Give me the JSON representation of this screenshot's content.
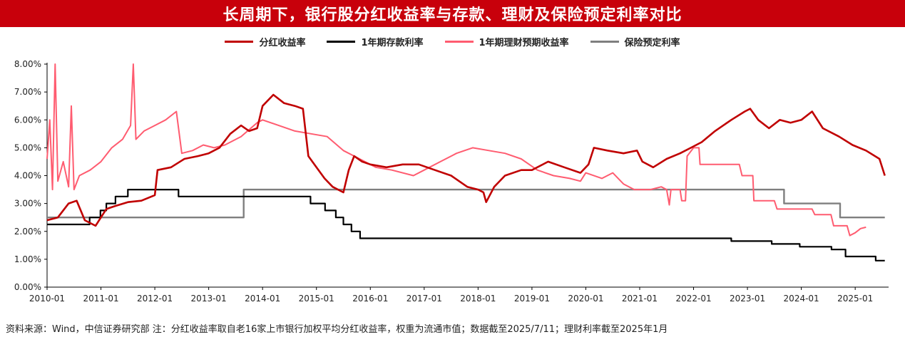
{
  "title": "长周期下，银行股分红收益率与存款、理财及保险预定利率对比",
  "source_note": "资料来源：Wind，中信证券研究部 注：分红收益率取自老16家上市银行加权平均分红收益率，权重为流通市值；数据截至2025/7/11；理财利率截至2025年1月",
  "chart_data": {
    "type": "line",
    "title": "长周期下，银行股分红收益率与存款、理财及保险预定利率对比",
    "xlabel": "",
    "ylabel": "",
    "x_range": [
      2010.0,
      2025.62
    ],
    "ylim": [
      0,
      8
    ],
    "y_ticks": [
      "0.00%",
      "1.00%",
      "2.00%",
      "3.00%",
      "4.00%",
      "5.00%",
      "6.00%",
      "7.00%",
      "8.00%"
    ],
    "x_ticks": [
      "2010-01",
      "2011-01",
      "2012-01",
      "2013-01",
      "2014-01",
      "2015-01",
      "2016-01",
      "2017-01",
      "2018-01",
      "2019-01",
      "2020-01",
      "2021-01",
      "2022-01",
      "2023-01",
      "2024-01",
      "2025-01"
    ],
    "grid": false,
    "legend_position": "top",
    "series": [
      {
        "name": "分红收益率",
        "color": "#c00000",
        "points": [
          [
            2010.0,
            2.4
          ],
          [
            2010.2,
            2.5
          ],
          [
            2010.4,
            3.0
          ],
          [
            2010.55,
            3.1
          ],
          [
            2010.7,
            2.4
          ],
          [
            2010.9,
            2.2
          ],
          [
            2011.0,
            2.5
          ],
          [
            2011.1,
            2.8
          ],
          [
            2011.25,
            2.9
          ],
          [
            2011.5,
            3.05
          ],
          [
            2011.75,
            3.1
          ],
          [
            2012.0,
            3.3
          ],
          [
            2012.05,
            4.2
          ],
          [
            2012.3,
            4.3
          ],
          [
            2012.55,
            4.6
          ],
          [
            2012.8,
            4.7
          ],
          [
            2013.0,
            4.8
          ],
          [
            2013.2,
            5.0
          ],
          [
            2013.4,
            5.5
          ],
          [
            2013.6,
            5.8
          ],
          [
            2013.75,
            5.6
          ],
          [
            2013.9,
            5.7
          ],
          [
            2014.0,
            6.5
          ],
          [
            2014.2,
            6.9
          ],
          [
            2014.4,
            6.6
          ],
          [
            2014.6,
            6.5
          ],
          [
            2014.75,
            6.4
          ],
          [
            2014.85,
            4.7
          ],
          [
            2015.0,
            4.3
          ],
          [
            2015.15,
            3.9
          ],
          [
            2015.3,
            3.6
          ],
          [
            2015.5,
            3.4
          ],
          [
            2015.6,
            4.2
          ],
          [
            2015.7,
            4.7
          ],
          [
            2015.85,
            4.5
          ],
          [
            2016.0,
            4.4
          ],
          [
            2016.3,
            4.3
          ],
          [
            2016.6,
            4.4
          ],
          [
            2016.9,
            4.4
          ],
          [
            2017.2,
            4.2
          ],
          [
            2017.5,
            4.0
          ],
          [
            2017.8,
            3.6
          ],
          [
            2018.0,
            3.5
          ],
          [
            2018.1,
            3.4
          ],
          [
            2018.15,
            3.05
          ],
          [
            2018.3,
            3.6
          ],
          [
            2018.5,
            4.0
          ],
          [
            2018.8,
            4.2
          ],
          [
            2019.0,
            4.2
          ],
          [
            2019.3,
            4.5
          ],
          [
            2019.6,
            4.3
          ],
          [
            2019.9,
            4.1
          ],
          [
            2020.05,
            4.4
          ],
          [
            2020.15,
            5.0
          ],
          [
            2020.4,
            4.9
          ],
          [
            2020.7,
            4.8
          ],
          [
            2020.95,
            4.9
          ],
          [
            2021.05,
            4.5
          ],
          [
            2021.25,
            4.3
          ],
          [
            2021.5,
            4.6
          ],
          [
            2021.75,
            4.8
          ],
          [
            2021.95,
            5.0
          ],
          [
            2022.15,
            5.2
          ],
          [
            2022.4,
            5.6
          ],
          [
            2022.7,
            6.0
          ],
          [
            2022.95,
            6.3
          ],
          [
            2023.05,
            6.4
          ],
          [
            2023.2,
            6.0
          ],
          [
            2023.4,
            5.7
          ],
          [
            2023.6,
            6.0
          ],
          [
            2023.8,
            5.9
          ],
          [
            2024.0,
            6.0
          ],
          [
            2024.2,
            6.3
          ],
          [
            2024.4,
            5.7
          ],
          [
            2024.7,
            5.4
          ],
          [
            2024.95,
            5.1
          ],
          [
            2025.2,
            4.9
          ],
          [
            2025.45,
            4.6
          ],
          [
            2025.55,
            4.0
          ]
        ]
      },
      {
        "name": "1年期存款利率",
        "color": "#000000",
        "points": [
          [
            2010.0,
            2.25
          ],
          [
            2010.79,
            2.25
          ],
          [
            2010.79,
            2.5
          ],
          [
            2010.99,
            2.5
          ],
          [
            2010.99,
            2.75
          ],
          [
            2011.1,
            2.75
          ],
          [
            2011.1,
            3.0
          ],
          [
            2011.27,
            3.0
          ],
          [
            2011.27,
            3.25
          ],
          [
            2011.5,
            3.25
          ],
          [
            2011.5,
            3.5
          ],
          [
            2012.44,
            3.5
          ],
          [
            2012.44,
            3.25
          ],
          [
            2014.89,
            3.25
          ],
          [
            2014.89,
            3.0
          ],
          [
            2015.16,
            3.0
          ],
          [
            2015.16,
            2.75
          ],
          [
            2015.36,
            2.75
          ],
          [
            2015.36,
            2.5
          ],
          [
            2015.5,
            2.5
          ],
          [
            2015.5,
            2.25
          ],
          [
            2015.65,
            2.25
          ],
          [
            2015.65,
            2.0
          ],
          [
            2015.81,
            2.0
          ],
          [
            2015.81,
            1.75
          ],
          [
            2022.7,
            1.75
          ],
          [
            2022.7,
            1.65
          ],
          [
            2023.45,
            1.65
          ],
          [
            2023.45,
            1.55
          ],
          [
            2023.97,
            1.55
          ],
          [
            2023.97,
            1.45
          ],
          [
            2024.56,
            1.45
          ],
          [
            2024.56,
            1.35
          ],
          [
            2024.82,
            1.35
          ],
          [
            2024.82,
            1.1
          ],
          [
            2025.38,
            1.1
          ],
          [
            2025.38,
            0.95
          ],
          [
            2025.55,
            0.95
          ]
        ]
      },
      {
        "name": "1年期理财预期收益率",
        "color": "#ff5c70",
        "points": [
          [
            2010.0,
            4.6
          ],
          [
            2010.05,
            6.0
          ],
          [
            2010.1,
            3.5
          ],
          [
            2010.15,
            8.0
          ],
          [
            2010.2,
            3.8
          ],
          [
            2010.3,
            4.5
          ],
          [
            2010.4,
            3.6
          ],
          [
            2010.45,
            6.5
          ],
          [
            2010.5,
            3.5
          ],
          [
            2010.6,
            4.0
          ],
          [
            2010.8,
            4.2
          ],
          [
            2011.0,
            4.5
          ],
          [
            2011.2,
            5.0
          ],
          [
            2011.4,
            5.3
          ],
          [
            2011.55,
            5.8
          ],
          [
            2011.6,
            8.0
          ],
          [
            2011.65,
            5.3
          ],
          [
            2011.8,
            5.6
          ],
          [
            2012.0,
            5.8
          ],
          [
            2012.2,
            6.0
          ],
          [
            2012.4,
            6.3
          ],
          [
            2012.5,
            4.8
          ],
          [
            2012.7,
            4.9
          ],
          [
            2012.9,
            5.1
          ],
          [
            2013.1,
            5.0
          ],
          [
            2013.3,
            5.1
          ],
          [
            2013.6,
            5.4
          ],
          [
            2013.9,
            5.9
          ],
          [
            2014.0,
            6.0
          ],
          [
            2014.3,
            5.8
          ],
          [
            2014.6,
            5.6
          ],
          [
            2014.9,
            5.5
          ],
          [
            2015.2,
            5.4
          ],
          [
            2015.5,
            4.9
          ],
          [
            2015.8,
            4.6
          ],
          [
            2016.1,
            4.3
          ],
          [
            2016.4,
            4.2
          ],
          [
            2016.8,
            4.0
          ],
          [
            2017.0,
            4.2
          ],
          [
            2017.3,
            4.5
          ],
          [
            2017.6,
            4.8
          ],
          [
            2017.9,
            5.0
          ],
          [
            2018.2,
            4.9
          ],
          [
            2018.5,
            4.8
          ],
          [
            2018.8,
            4.6
          ],
          [
            2019.1,
            4.2
          ],
          [
            2019.4,
            4.0
          ],
          [
            2019.7,
            3.9
          ],
          [
            2019.9,
            3.8
          ],
          [
            2020.0,
            4.1
          ],
          [
            2020.3,
            3.9
          ],
          [
            2020.5,
            4.1
          ],
          [
            2020.7,
            3.7
          ],
          [
            2020.9,
            3.5
          ],
          [
            2021.2,
            3.5
          ],
          [
            2021.4,
            3.6
          ],
          [
            2021.5,
            3.5
          ],
          [
            2021.55,
            2.95
          ],
          [
            2021.58,
            3.5
          ],
          [
            2021.75,
            3.5
          ],
          [
            2021.78,
            3.1
          ],
          [
            2021.85,
            3.1
          ],
          [
            2021.88,
            4.7
          ],
          [
            2022.0,
            5.0
          ],
          [
            2022.1,
            5.0
          ],
          [
            2022.12,
            4.4
          ],
          [
            2022.85,
            4.4
          ],
          [
            2022.9,
            4.0
          ],
          [
            2023.1,
            4.0
          ],
          [
            2023.12,
            3.1
          ],
          [
            2023.5,
            3.1
          ],
          [
            2023.55,
            2.8
          ],
          [
            2024.2,
            2.8
          ],
          [
            2024.25,
            2.6
          ],
          [
            2024.55,
            2.6
          ],
          [
            2024.6,
            2.2
          ],
          [
            2024.85,
            2.2
          ],
          [
            2024.9,
            1.85
          ],
          [
            2025.0,
            1.95
          ],
          [
            2025.1,
            2.1
          ],
          [
            2025.2,
            2.15
          ]
        ]
      },
      {
        "name": "保险预定利率",
        "color": "#7f7f7f",
        "points": [
          [
            2010.0,
            2.5
          ],
          [
            2013.65,
            2.5
          ],
          [
            2013.65,
            3.5
          ],
          [
            2023.68,
            3.5
          ],
          [
            2023.68,
            3.0
          ],
          [
            2024.72,
            3.0
          ],
          [
            2024.72,
            2.5
          ],
          [
            2025.55,
            2.5
          ]
        ]
      }
    ]
  }
}
